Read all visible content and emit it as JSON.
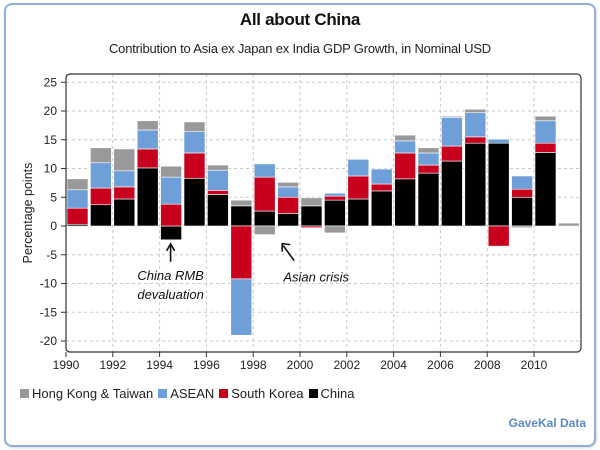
{
  "chart_data": {
    "type": "bar",
    "stacked": true,
    "title": "All about China",
    "subtitle": "Contribution to Asia ex Japan ex India GDP Growth, in Nominal USD",
    "xlabel": "",
    "ylabel": "Percentage points",
    "ylim": [
      -20,
      25
    ],
    "yticks": [
      25,
      20,
      15,
      10,
      5,
      0,
      -5,
      -10,
      -15,
      -20
    ],
    "xlim": [
      1990,
      2012
    ],
    "xticks": [
      1990,
      1992,
      1994,
      1996,
      1998,
      2000,
      2002,
      2004,
      2006,
      2008,
      2010
    ],
    "grid": true,
    "legend_position": "bottom-left",
    "categories": [
      1990,
      1991,
      1992,
      1993,
      1994,
      1995,
      1996,
      1997,
      1998,
      1999,
      2000,
      2001,
      2002,
      2003,
      2004,
      2005,
      2006,
      2007,
      2008,
      2009,
      2010,
      2011
    ],
    "series": [
      {
        "name": "China",
        "color": "#000000",
        "values": [
          0.3,
          3.7,
          4.7,
          10.1,
          -2.4,
          8.3,
          5.5,
          3.5,
          2.6,
          2.2,
          3.5,
          4.5,
          4.7,
          6.1,
          8.2,
          9.2,
          11.3,
          14.4,
          14.4,
          5.0,
          12.8,
          0.0
        ]
      },
      {
        "name": "South Korea",
        "color": "#c8001e",
        "values": [
          2.8,
          2.9,
          2.1,
          3.3,
          3.8,
          4.4,
          0.7,
          -9.2,
          5.9,
          2.8,
          -0.3,
          0.7,
          4.0,
          1.2,
          4.5,
          1.4,
          2.6,
          1.1,
          -3.5,
          1.4,
          1.6,
          0.0
        ]
      },
      {
        "name": "ASEAN",
        "color": "#6f9fd8",
        "values": [
          3.2,
          4.4,
          2.8,
          3.3,
          4.7,
          3.7,
          3.5,
          -9.8,
          2.3,
          1.8,
          0.0,
          0.5,
          2.9,
          2.6,
          2.1,
          2.1,
          5.0,
          4.2,
          0.7,
          2.3,
          3.9,
          0.0
        ]
      },
      {
        "name": "Hong Kong & Taiwan",
        "color": "#999999",
        "values": [
          1.9,
          2.6,
          3.8,
          1.6,
          1.9,
          1.7,
          0.9,
          1.0,
          -1.5,
          0.8,
          1.4,
          -1.2,
          0.0,
          0.0,
          1.0,
          0.9,
          0.2,
          0.6,
          0.0,
          -0.3,
          0.8,
          0.5
        ]
      }
    ],
    "annotations": [
      {
        "text_lines": [
          "China RMB",
          "devaluation"
        ],
        "points_to": {
          "x": 1994,
          "y": -2.4
        }
      },
      {
        "text_lines": [
          "Asian crisis"
        ],
        "points_to": {
          "x": 1998,
          "y": -1.5
        }
      }
    ]
  },
  "legend": [
    {
      "label": "Hong Kong & Taiwan",
      "color": "#999999"
    },
    {
      "label": "ASEAN",
      "color": "#6f9fd8"
    },
    {
      "label": "South Korea",
      "color": "#c8001e"
    },
    {
      "label": "China",
      "color": "#000000"
    }
  ],
  "source": "GaveKal Data"
}
